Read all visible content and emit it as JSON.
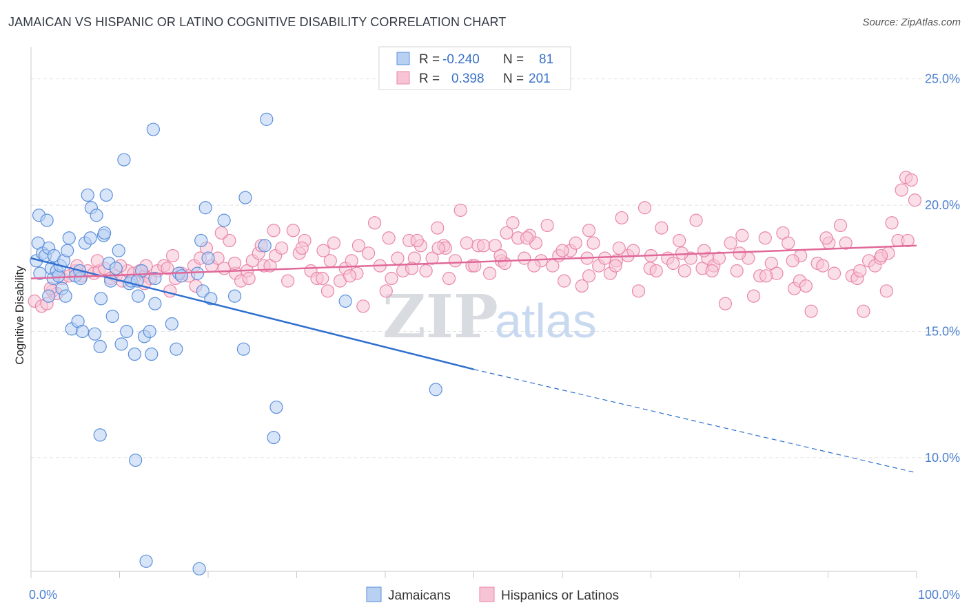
{
  "title": "JAMAICAN VS HISPANIC OR LATINO COGNITIVE DISABILITY CORRELATION CHART",
  "source": "Source: ZipAtlas.com",
  "watermark": {
    "zip": "ZIP",
    "atlas": "atlas"
  },
  "colors": {
    "blue": "#5b8fdc",
    "blue_fill": "#b8d0f2",
    "blue_line": "#2f6fcf",
    "pink": "#e986a8",
    "pink_fill": "#f7c4d5",
    "pink_line": "#e0689a",
    "tick": "#4a7fd0"
  },
  "legend": {
    "rows": [
      {
        "r_label": "R =",
        "r_value": "-0.240",
        "n_label": "N =",
        "n_value": "81",
        "color": "blue"
      },
      {
        "r_label": "R =",
        "r_value": "0.398",
        "n_label": "N =",
        "n_value": "201",
        "color": "pink"
      }
    ]
  },
  "bottom_legend": [
    {
      "label": "Jamaicans",
      "color": "blue"
    },
    {
      "label": "Hispanics or Latinos",
      "color": "pink"
    }
  ],
  "chart_data": {
    "type": "scatter",
    "ylabel": "Cognitive Disability",
    "xlim": [
      0,
      100
    ],
    "ylim": [
      5.5,
      26
    ],
    "x_ticks": [
      "0.0%",
      "100.0%"
    ],
    "y_ticks": [
      {
        "value": 10,
        "label": "10.0%"
      },
      {
        "value": 15,
        "label": "15.0%"
      },
      {
        "value": 20,
        "label": "20.0%"
      },
      {
        "value": 25,
        "label": "25.0%"
      }
    ],
    "grid": "horizontal-dashed",
    "series": [
      {
        "name": "Jamaicans",
        "color": "blue",
        "trend": {
          "x0": 0,
          "y0": 17.9,
          "x1": 50,
          "y1": 13.5,
          "dash_to_x": 100,
          "dash_to_y": 9.4
        },
        "points": [
          [
            0.6,
            17.8
          ],
          [
            0.8,
            18.5
          ],
          [
            0.9,
            19.6
          ],
          [
            1.0,
            17.3
          ],
          [
            1.3,
            18.1
          ],
          [
            1.6,
            18.0
          ],
          [
            1.8,
            19.4
          ],
          [
            2.0,
            18.3
          ],
          [
            2.3,
            17.5
          ],
          [
            2.5,
            17.1
          ],
          [
            2.6,
            18.0
          ],
          [
            2.9,
            17.4
          ],
          [
            3.1,
            17.2
          ],
          [
            3.3,
            17.6
          ],
          [
            3.5,
            16.7
          ],
          [
            3.7,
            17.8
          ],
          [
            3.9,
            16.4
          ],
          [
            4.1,
            18.2
          ],
          [
            4.3,
            18.7
          ],
          [
            4.6,
            15.1
          ],
          [
            5.0,
            17.2
          ],
          [
            5.3,
            15.4
          ],
          [
            5.6,
            17.1
          ],
          [
            5.8,
            15.0
          ],
          [
            6.1,
            18.5
          ],
          [
            6.4,
            20.4
          ],
          [
            6.7,
            18.7
          ],
          [
            6.8,
            19.9
          ],
          [
            7.2,
            14.9
          ],
          [
            7.4,
            19.6
          ],
          [
            7.8,
            14.4
          ],
          [
            7.9,
            16.3
          ],
          [
            8.2,
            18.8
          ],
          [
            8.3,
            18.9
          ],
          [
            8.5,
            20.4
          ],
          [
            8.8,
            17.7
          ],
          [
            9.2,
            15.6
          ],
          [
            9.6,
            17.5
          ],
          [
            9.9,
            18.2
          ],
          [
            10.2,
            14.5
          ],
          [
            10.5,
            21.8
          ],
          [
            10.8,
            15.0
          ],
          [
            11.1,
            16.9
          ],
          [
            11.3,
            17.0
          ],
          [
            11.7,
            14.1
          ],
          [
            12.1,
            16.4
          ],
          [
            12.5,
            17.4
          ],
          [
            12.8,
            14.8
          ],
          [
            13.4,
            15.0
          ],
          [
            13.6,
            14.1
          ],
          [
            13.8,
            23.0
          ],
          [
            14.0,
            16.1
          ],
          [
            15.9,
            15.3
          ],
          [
            16.4,
            14.3
          ],
          [
            16.7,
            17.3
          ],
          [
            17.0,
            17.2
          ],
          [
            18.8,
            17.3
          ],
          [
            19.2,
            18.6
          ],
          [
            19.4,
            16.6
          ],
          [
            19.7,
            19.9
          ],
          [
            20.0,
            17.9
          ],
          [
            20.3,
            16.3
          ],
          [
            21.8,
            19.4
          ],
          [
            23.0,
            16.4
          ],
          [
            24.0,
            14.3
          ],
          [
            24.2,
            20.3
          ],
          [
            26.4,
            18.4
          ],
          [
            26.6,
            23.4
          ],
          [
            27.4,
            10.8
          ],
          [
            27.7,
            12.0
          ],
          [
            35.5,
            16.2
          ],
          [
            45.7,
            12.7
          ],
          [
            7.8,
            10.9
          ],
          [
            11.8,
            9.9
          ],
          [
            13.0,
            5.9
          ],
          [
            19.0,
            5.6
          ],
          [
            2.0,
            16.4
          ],
          [
            5.5,
            17.4
          ],
          [
            9.0,
            17.0
          ],
          [
            12.0,
            17.0
          ],
          [
            14.0,
            17.1
          ]
        ]
      },
      {
        "name": "Hispanics or Latinos",
        "color": "pink",
        "trend": {
          "x0": 0,
          "y0": 17.1,
          "x1": 100,
          "y1": 18.4
        },
        "points": [
          [
            0.4,
            16.2
          ],
          [
            1.2,
            16.0
          ],
          [
            1.8,
            16.1
          ],
          [
            2.4,
            16.6
          ],
          [
            2.9,
            16.5
          ],
          [
            3.5,
            17.1
          ],
          [
            4.3,
            17.2
          ],
          [
            5.0,
            17.4
          ],
          [
            5.7,
            17.2
          ],
          [
            6.4,
            17.4
          ],
          [
            7.1,
            17.3
          ],
          [
            7.7,
            17.4
          ],
          [
            8.3,
            17.5
          ],
          [
            9.0,
            17.1
          ],
          [
            9.6,
            17.2
          ],
          [
            10.3,
            17.0
          ],
          [
            10.9,
            17.4
          ],
          [
            11.6,
            17.3
          ],
          [
            12.3,
            17.4
          ],
          [
            12.9,
            17.2
          ],
          [
            13.5,
            17.1
          ],
          [
            14.3,
            17.4
          ],
          [
            15.0,
            17.6
          ],
          [
            15.7,
            16.6
          ],
          [
            16.3,
            17.1
          ],
          [
            17.0,
            17.3
          ],
          [
            17.8,
            17.2
          ],
          [
            18.4,
            17.6
          ],
          [
            19.1,
            17.9
          ],
          [
            19.8,
            18.3
          ],
          [
            20.4,
            17.6
          ],
          [
            21.1,
            17.9
          ],
          [
            21.8,
            17.5
          ],
          [
            22.4,
            18.6
          ],
          [
            23.1,
            17.3
          ],
          [
            23.7,
            17.0
          ],
          [
            24.4,
            17.4
          ],
          [
            25.0,
            17.8
          ],
          [
            25.7,
            18.1
          ],
          [
            26.3,
            17.6
          ],
          [
            27.0,
            17.6
          ],
          [
            27.6,
            18.0
          ],
          [
            28.3,
            18.3
          ],
          [
            29.0,
            17.0
          ],
          [
            29.6,
            19.0
          ],
          [
            30.3,
            18.1
          ],
          [
            30.9,
            18.6
          ],
          [
            31.6,
            17.4
          ],
          [
            32.3,
            17.1
          ],
          [
            32.9,
            17.1
          ],
          [
            33.5,
            16.6
          ],
          [
            34.2,
            18.5
          ],
          [
            34.9,
            17.0
          ],
          [
            35.5,
            17.5
          ],
          [
            36.2,
            17.8
          ],
          [
            36.8,
            17.3
          ],
          [
            37.5,
            16.0
          ],
          [
            38.1,
            18.1
          ],
          [
            38.8,
            19.3
          ],
          [
            39.4,
            17.6
          ],
          [
            40.1,
            16.6
          ],
          [
            40.7,
            17.1
          ],
          [
            41.4,
            17.9
          ],
          [
            42.0,
            17.4
          ],
          [
            42.7,
            18.6
          ],
          [
            43.3,
            17.9
          ],
          [
            44.0,
            18.4
          ],
          [
            44.6,
            17.4
          ],
          [
            45.3,
            17.9
          ],
          [
            45.9,
            19.1
          ],
          [
            46.6,
            18.4
          ],
          [
            47.2,
            17.1
          ],
          [
            47.9,
            17.8
          ],
          [
            48.5,
            19.8
          ],
          [
            49.2,
            18.5
          ],
          [
            49.8,
            17.6
          ],
          [
            50.5,
            18.4
          ],
          [
            51.1,
            18.4
          ],
          [
            51.8,
            17.3
          ],
          [
            52.4,
            18.4
          ],
          [
            53.1,
            17.8
          ],
          [
            53.7,
            18.9
          ],
          [
            54.4,
            19.3
          ],
          [
            55.0,
            18.7
          ],
          [
            55.7,
            17.9
          ],
          [
            56.3,
            18.8
          ],
          [
            57.0,
            18.5
          ],
          [
            57.6,
            17.8
          ],
          [
            58.3,
            19.2
          ],
          [
            58.9,
            17.6
          ],
          [
            59.6,
            18.0
          ],
          [
            60.2,
            17.0
          ],
          [
            60.9,
            18.2
          ],
          [
            61.5,
            18.5
          ],
          [
            62.2,
            16.8
          ],
          [
            62.8,
            17.9
          ],
          [
            63.5,
            18.5
          ],
          [
            64.1,
            17.6
          ],
          [
            64.8,
            17.9
          ],
          [
            65.4,
            17.3
          ],
          [
            66.1,
            17.8
          ],
          [
            66.7,
            19.5
          ],
          [
            67.4,
            18.0
          ],
          [
            68.0,
            18.2
          ],
          [
            68.6,
            16.6
          ],
          [
            69.3,
            19.9
          ],
          [
            69.9,
            17.5
          ],
          [
            70.6,
            17.4
          ],
          [
            71.2,
            19.1
          ],
          [
            71.9,
            17.9
          ],
          [
            72.5,
            17.7
          ],
          [
            73.2,
            18.6
          ],
          [
            73.8,
            17.4
          ],
          [
            74.5,
            17.9
          ],
          [
            75.1,
            19.4
          ],
          [
            75.8,
            17.5
          ],
          [
            76.4,
            17.9
          ],
          [
            77.1,
            17.6
          ],
          [
            77.7,
            17.9
          ],
          [
            78.4,
            16.1
          ],
          [
            79.0,
            18.5
          ],
          [
            79.7,
            17.4
          ],
          [
            80.3,
            18.8
          ],
          [
            81.0,
            17.9
          ],
          [
            81.6,
            16.4
          ],
          [
            82.3,
            17.2
          ],
          [
            82.9,
            18.7
          ],
          [
            83.6,
            17.7
          ],
          [
            84.2,
            17.3
          ],
          [
            84.9,
            18.9
          ],
          [
            85.5,
            18.5
          ],
          [
            86.2,
            16.7
          ],
          [
            86.8,
            17.0
          ],
          [
            87.5,
            16.8
          ],
          [
            88.1,
            15.8
          ],
          [
            88.8,
            17.7
          ],
          [
            89.4,
            17.6
          ],
          [
            90.1,
            18.5
          ],
          [
            90.7,
            17.3
          ],
          [
            91.4,
            19.2
          ],
          [
            92.0,
            18.5
          ],
          [
            92.7,
            17.2
          ],
          [
            93.3,
            17.1
          ],
          [
            94.0,
            15.8
          ],
          [
            94.6,
            17.8
          ],
          [
            95.3,
            17.6
          ],
          [
            95.9,
            17.9
          ],
          [
            96.6,
            16.6
          ],
          [
            97.2,
            19.3
          ],
          [
            97.9,
            18.6
          ],
          [
            98.3,
            20.6
          ],
          [
            98.8,
            21.1
          ],
          [
            99.4,
            21.0
          ],
          [
            99.8,
            20.2
          ],
          [
            99.0,
            18.6
          ],
          [
            96.8,
            18.1
          ],
          [
            93.6,
            17.4
          ],
          [
            89.8,
            18.7
          ],
          [
            86.9,
            18.0
          ],
          [
            83.0,
            17.2
          ],
          [
            80.0,
            18.1
          ],
          [
            76.9,
            17.4
          ],
          [
            73.5,
            18.1
          ],
          [
            70.0,
            18.0
          ],
          [
            66.4,
            18.3
          ],
          [
            63.0,
            19.0
          ],
          [
            60.0,
            18.2
          ],
          [
            56.8,
            17.6
          ],
          [
            53.5,
            17.7
          ],
          [
            50.1,
            17.6
          ],
          [
            46.8,
            18.3
          ],
          [
            43.6,
            18.6
          ],
          [
            40.4,
            18.7
          ],
          [
            37.0,
            18.4
          ],
          [
            33.8,
            17.8
          ],
          [
            30.6,
            18.3
          ],
          [
            27.4,
            19.0
          ],
          [
            24.6,
            17.1
          ],
          [
            21.5,
            18.9
          ],
          [
            18.6,
            16.8
          ],
          [
            15.4,
            17.5
          ],
          [
            12.8,
            16.9
          ],
          [
            10.1,
            17.6
          ],
          [
            7.5,
            17.8
          ],
          [
            5.2,
            17.6
          ],
          [
            2.2,
            16.7
          ],
          [
            16.0,
            18.0
          ],
          [
            26.0,
            18.4
          ],
          [
            36.0,
            17.2
          ],
          [
            46.0,
            18.3
          ],
          [
            56.0,
            18.7
          ],
          [
            66.0,
            17.6
          ],
          [
            76.0,
            18.2
          ],
          [
            86.0,
            17.8
          ],
          [
            96.0,
            18.0
          ],
          [
            13.0,
            17.6
          ],
          [
            23.0,
            17.7
          ],
          [
            33.0,
            18.2
          ],
          [
            43.0,
            17.5
          ],
          [
            53.0,
            18.0
          ],
          [
            63.0,
            17.2
          ]
        ]
      }
    ]
  }
}
